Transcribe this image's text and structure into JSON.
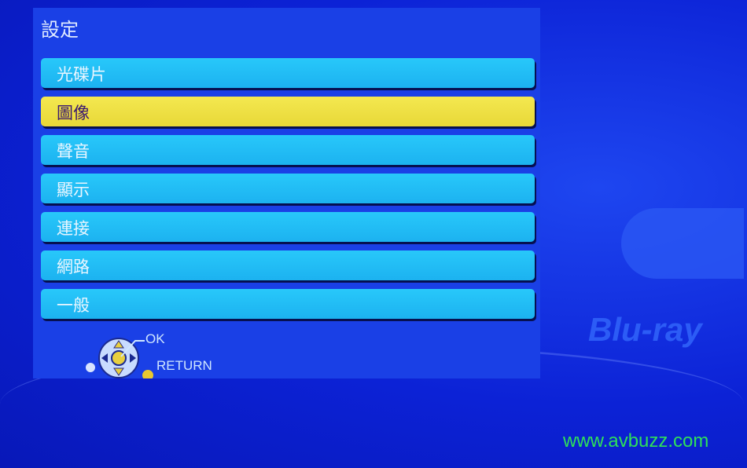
{
  "title": "設定",
  "menu": [
    {
      "label": "光碟片",
      "selected": false
    },
    {
      "label": "圖像",
      "selected": true
    },
    {
      "label": "聲音",
      "selected": false
    },
    {
      "label": "顯示",
      "selected": false
    },
    {
      "label": "連接",
      "selected": false
    },
    {
      "label": "網路",
      "selected": false
    },
    {
      "label": "一般",
      "selected": false
    }
  ],
  "hints": {
    "ok": "OK",
    "return": "RETURN"
  },
  "logo": "Blu-ray",
  "watermark": "www.avbuzz.com",
  "colors": {
    "item": "#20c0f8",
    "selected": "#f0e040",
    "panel": "#1a40e6"
  }
}
